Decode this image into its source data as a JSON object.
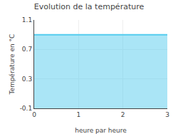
{
  "chart_data": {
    "type": "area",
    "title": "Evolution de la température",
    "xlabel": "heure par heure",
    "ylabel": "Température en °C",
    "x": [
      0,
      3
    ],
    "values": [
      0.9,
      0.9
    ],
    "fill_bottom": -0.1,
    "color": "#55ccee",
    "xlim": [
      0,
      3
    ],
    "ylim": [
      -0.1,
      1.1
    ],
    "xticks": [
      0,
      1,
      2,
      3
    ],
    "yticks": [
      -0.1,
      0.3,
      0.7,
      1.1
    ],
    "grid": true
  }
}
